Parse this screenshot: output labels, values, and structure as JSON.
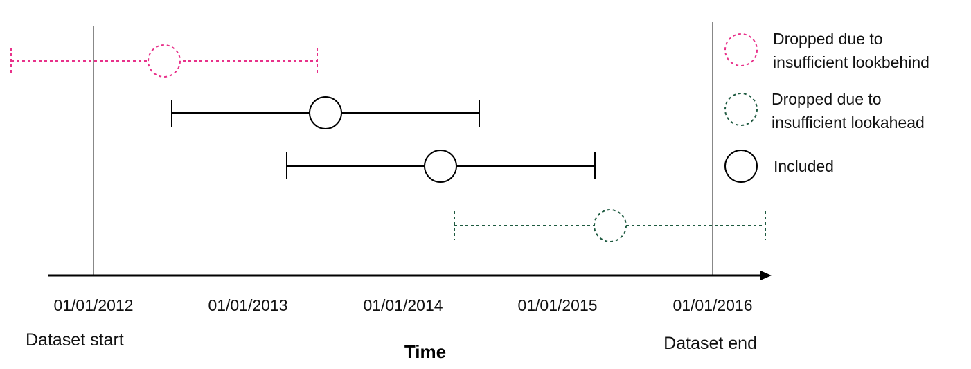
{
  "colors": {
    "lookbehind": "#e8318a",
    "lookahead": "#1e5a40",
    "included": "#000000",
    "boundary_line": "#888888",
    "axis": "#000000"
  },
  "axis": {
    "title": "Time",
    "ticks": [
      "01/01/2012",
      "01/01/2013",
      "01/01/2014",
      "01/01/2015",
      "01/01/2016"
    ]
  },
  "boundaries": {
    "start_label": "Dataset start",
    "end_label": "Dataset end"
  },
  "legend": {
    "items": [
      {
        "lines": [
          "Dropped due to",
          "insufficient lookbehind"
        ],
        "style": "lookbehind"
      },
      {
        "lines": [
          "Dropped due to",
          "insufficient lookahead"
        ],
        "style": "lookahead"
      },
      {
        "lines": [
          "Included"
        ],
        "style": "included"
      }
    ]
  }
}
